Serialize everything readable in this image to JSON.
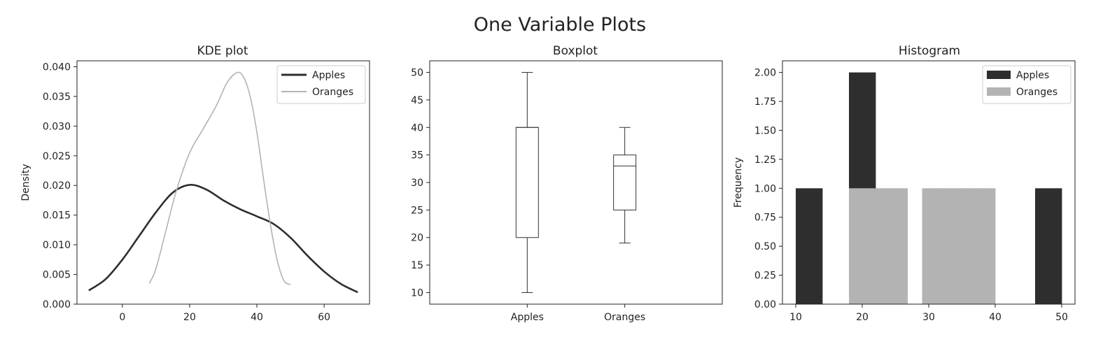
{
  "figure": {
    "suptitle": "One Variable Plots"
  },
  "colors": {
    "apples": "#2e2e2e",
    "oranges": "#b3b3b3",
    "box": "#333333"
  },
  "chart_data": [
    {
      "type": "line",
      "title": "KDE plot",
      "ylabel": "Density",
      "xlabel": "",
      "xlim": [
        -13.5,
        73.5
      ],
      "ylim": [
        0,
        0.041
      ],
      "xticks": [
        "0",
        "20",
        "40",
        "60"
      ],
      "xtick_values": [
        0,
        20,
        40,
        60
      ],
      "yticks": [
        "0.000",
        "0.005",
        "0.010",
        "0.015",
        "0.020",
        "0.025",
        "0.030",
        "0.035",
        "0.040"
      ],
      "ytick_values": [
        0,
        0.005,
        0.01,
        0.015,
        0.02,
        0.025,
        0.03,
        0.035,
        0.04
      ],
      "legend": {
        "position": "top-right",
        "entries": [
          "Apples",
          "Oranges"
        ]
      },
      "series": [
        {
          "name": "Apples",
          "x": [
            -10,
            -5,
            0,
            5,
            10,
            15,
            20,
            25,
            30,
            35,
            40,
            45,
            50,
            55,
            60,
            65,
            70
          ],
          "y": [
            0.0023,
            0.0042,
            0.0075,
            0.0115,
            0.0155,
            0.0188,
            0.0201,
            0.0193,
            0.0175,
            0.016,
            0.0148,
            0.0135,
            0.0112,
            0.0082,
            0.0055,
            0.0034,
            0.002
          ]
        },
        {
          "name": "Oranges",
          "x": [
            8,
            10,
            13,
            16,
            20,
            24,
            28,
            31,
            34,
            36,
            38,
            40,
            42,
            44,
            46,
            48,
            50
          ],
          "y": [
            0.0035,
            0.006,
            0.0125,
            0.019,
            0.0255,
            0.0295,
            0.0335,
            0.0372,
            0.039,
            0.0383,
            0.035,
            0.029,
            0.021,
            0.0135,
            0.0075,
            0.004,
            0.0033
          ]
        }
      ]
    },
    {
      "type": "box",
      "title": "Boxplot",
      "ylim": [
        7.9,
        52.1
      ],
      "yticks": [
        "10",
        "15",
        "20",
        "25",
        "30",
        "35",
        "40",
        "45",
        "50"
      ],
      "ytick_values": [
        10,
        15,
        20,
        25,
        30,
        35,
        40,
        45,
        50
      ],
      "categories": [
        "Apples",
        "Oranges"
      ],
      "boxes": [
        {
          "name": "Apples",
          "min": 10,
          "q1": 20,
          "median": 40,
          "q3": 40,
          "max": 50
        },
        {
          "name": "Oranges",
          "min": 19,
          "q1": 25,
          "median": 33,
          "q3": 35,
          "max": 40
        }
      ]
    },
    {
      "type": "bar",
      "title": "Histogram",
      "ylabel": "Frequency",
      "xlim": [
        8,
        52
      ],
      "ylim": [
        0,
        2.1
      ],
      "xticks": [
        "10",
        "20",
        "30",
        "40",
        "50"
      ],
      "xtick_values": [
        10,
        20,
        30,
        40,
        50
      ],
      "yticks": [
        "0.00",
        "0.25",
        "0.50",
        "0.75",
        "1.00",
        "1.25",
        "1.50",
        "1.75",
        "2.00"
      ],
      "ytick_values": [
        0,
        0.25,
        0.5,
        0.75,
        1,
        1.25,
        1.5,
        1.75,
        2
      ],
      "legend": {
        "position": "top-right",
        "entries": [
          "Apples",
          "Oranges"
        ]
      },
      "series": [
        {
          "name": "Apples",
          "bins": [
            [
              10,
              14
            ],
            [
              14,
              18
            ],
            [
              18,
              22
            ],
            [
              22,
              26
            ],
            [
              26,
              30
            ],
            [
              30,
              34
            ],
            [
              34,
              38
            ],
            [
              38,
              42
            ],
            [
              42,
              46
            ],
            [
              46,
              50
            ]
          ],
          "values": [
            1,
            0,
            2,
            0,
            0,
            0,
            0,
            0,
            0,
            1
          ]
        },
        {
          "name": "Oranges",
          "bins": [
            [
              18,
              20.2
            ],
            [
              20.2,
              22.4
            ],
            [
              22.4,
              24.6
            ],
            [
              24.6,
              26.8
            ],
            [
              26.8,
              29
            ],
            [
              29,
              31.2
            ],
            [
              31.2,
              33.4
            ],
            [
              33.4,
              35.6
            ],
            [
              35.6,
              37.8
            ],
            [
              37.8,
              40
            ]
          ],
          "values": [
            1,
            1,
            1,
            1,
            0,
            1,
            1,
            1,
            1,
            1
          ]
        }
      ]
    }
  ]
}
